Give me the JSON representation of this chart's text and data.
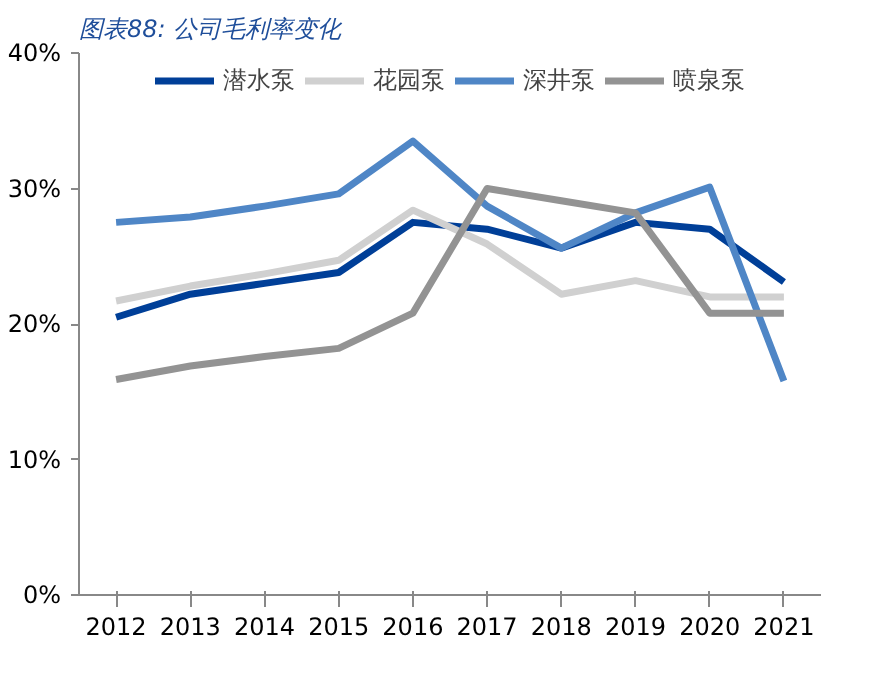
{
  "chart_data": {
    "type": "line",
    "title": "图表88: 公司毛利率变化",
    "categories": [
      "2012",
      "2013",
      "2014",
      "2015",
      "2016",
      "2017",
      "2018",
      "2019",
      "2020",
      "2021"
    ],
    "series": [
      {
        "name": "潜水泵",
        "color": "#003f98",
        "values": [
          20.5,
          22.2,
          23.0,
          23.8,
          27.5,
          27.0,
          25.6,
          27.5,
          27.0,
          23.1
        ]
      },
      {
        "name": "花园泵",
        "color": "#d0d0d0",
        "values": [
          21.7,
          22.8,
          23.7,
          24.7,
          28.4,
          25.9,
          22.2,
          23.2,
          22.0,
          22.0
        ]
      },
      {
        "name": "深井泵",
        "color": "#4f86c6",
        "values": [
          27.5,
          27.9,
          28.7,
          29.6,
          33.5,
          28.7,
          25.6,
          28.2,
          30.1,
          15.8
        ]
      },
      {
        "name": "喷泉泵",
        "color": "#939393",
        "values": [
          15.9,
          16.9,
          17.6,
          18.2,
          20.8,
          30.0,
          29.1,
          28.2,
          20.8,
          20.8
        ]
      }
    ],
    "ylim": [
      0,
      40
    ],
    "yticks": [
      {
        "value": 0,
        "label": "0%"
      },
      {
        "value": 10,
        "label": "10%"
      },
      {
        "value": 20,
        "label": "20%"
      },
      {
        "value": 30,
        "label": "30%"
      },
      {
        "value": 40,
        "label": "40%"
      }
    ],
    "grid": false,
    "legend": "top",
    "marker": "none",
    "line_style": "solid"
  }
}
